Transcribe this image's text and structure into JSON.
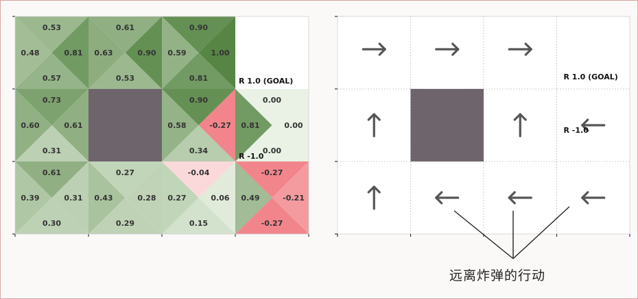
{
  "q_grid": {
    "cells": [
      {
        "id": "r0c0",
        "wall": false,
        "up": "0.53",
        "left": "0.48",
        "right": "0.81",
        "down": "0.57"
      },
      {
        "id": "r0c1",
        "wall": false,
        "up": "0.61",
        "left": "0.63",
        "right": "0.90",
        "down": "0.53"
      },
      {
        "id": "r0c2",
        "wall": false,
        "up": "0.90",
        "left": "0.59",
        "right": "1.00",
        "down": "0.81"
      },
      {
        "id": "r0c3",
        "wall": false,
        "terminal": "goal",
        "label": "R 1.0 (GOAL)"
      },
      {
        "id": "r1c0",
        "wall": false,
        "up": "0.73",
        "left": "0.60",
        "right": "0.61",
        "down": "0.31"
      },
      {
        "id": "r1c1",
        "wall": true
      },
      {
        "id": "r1c2",
        "wall": false,
        "up": "0.90",
        "left": "0.58",
        "right": "-0.27",
        "down": "0.34"
      },
      {
        "id": "r1c3",
        "wall": false,
        "up": "0.00",
        "left": "0.81",
        "right": "0.00",
        "down": "0.00",
        "label": "R -1.0"
      },
      {
        "id": "r2c0",
        "wall": false,
        "up": "0.61",
        "left": "0.39",
        "right": "0.31",
        "down": "0.30"
      },
      {
        "id": "r2c1",
        "wall": false,
        "up": "0.27",
        "left": "0.43",
        "right": "0.28",
        "down": "0.29"
      },
      {
        "id": "r2c2",
        "wall": false,
        "up": "-0.04",
        "left": "0.27",
        "right": "0.06",
        "down": "0.15"
      },
      {
        "id": "r2c3",
        "wall": false,
        "up": "-0.27",
        "left": "0.49",
        "right": "-0.21",
        "down": "-0.27"
      }
    ]
  },
  "policy_grid": {
    "cells": [
      {
        "id": "r0c0",
        "arrow": "right",
        "glyph": "→"
      },
      {
        "id": "r0c1",
        "arrow": "right",
        "glyph": "→"
      },
      {
        "id": "r0c2",
        "arrow": "right",
        "glyph": "→"
      },
      {
        "id": "r0c3",
        "label": "R 1.0 (GOAL)"
      },
      {
        "id": "r1c0",
        "arrow": "up",
        "glyph": "↑"
      },
      {
        "id": "r1c1",
        "wall": true
      },
      {
        "id": "r1c2",
        "arrow": "up",
        "glyph": "↑"
      },
      {
        "id": "r1c3",
        "arrow": "left",
        "glyph": "←",
        "label": "R -1.0"
      },
      {
        "id": "r2c0",
        "arrow": "up",
        "glyph": "↑"
      },
      {
        "id": "r2c1",
        "arrow": "left",
        "glyph": "←"
      },
      {
        "id": "r2c2",
        "arrow": "left",
        "glyph": "←"
      },
      {
        "id": "r2c3",
        "arrow": "left",
        "glyph": "←"
      }
    ]
  },
  "caption": "远离炸弹的行动",
  "colors": {
    "wall": "#6e656c",
    "positive": "#4f7f3c",
    "negative": "#f07a80",
    "neutral": "#ffffff",
    "gridline": "#bdbdbd",
    "axis": "#333333"
  }
}
